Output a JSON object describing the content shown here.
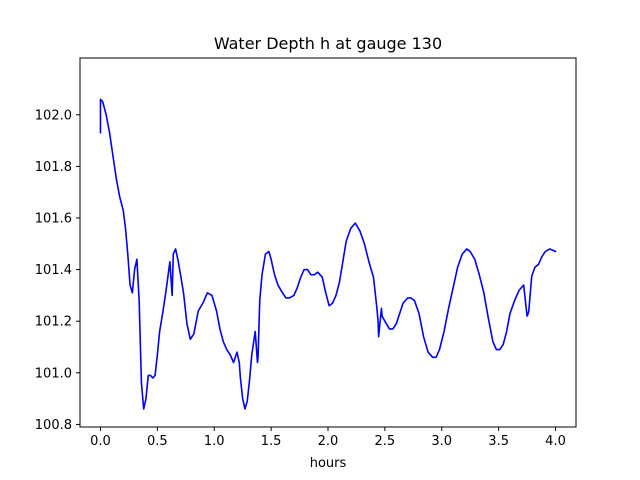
{
  "chart_data": {
    "type": "line",
    "title": "Water Depth h at gauge 130",
    "xlabel": "hours",
    "ylabel": "",
    "xlim": [
      -0.18,
      4.18
    ],
    "ylim": [
      100.79,
      102.22
    ],
    "xticks": [
      0.0,
      0.5,
      1.0,
      1.5,
      2.0,
      2.5,
      3.0,
      3.5,
      4.0
    ],
    "xtick_labels": [
      "0.0",
      "0.5",
      "1.0",
      "1.5",
      "2.0",
      "2.5",
      "3.0",
      "3.5",
      "4.0"
    ],
    "yticks": [
      100.8,
      101.0,
      101.2,
      101.4,
      101.6,
      101.8,
      102.0
    ],
    "ytick_labels": [
      "100.8",
      "101.0",
      "101.2",
      "101.4",
      "101.6",
      "101.8",
      "102.0"
    ],
    "grid": false,
    "series": [
      {
        "color": "#0000ff",
        "x": [
          0.0,
          0.0,
          0.02,
          0.05,
          0.08,
          0.11,
          0.14,
          0.17,
          0.2,
          0.22,
          0.24,
          0.26,
          0.28,
          0.3,
          0.32,
          0.34,
          0.36,
          0.38,
          0.4,
          0.42,
          0.44,
          0.46,
          0.48,
          0.5,
          0.52,
          0.55,
          0.58,
          0.61,
          0.63,
          0.635,
          0.64,
          0.66,
          0.68,
          0.7,
          0.73,
          0.76,
          0.79,
          0.82,
          0.86,
          0.9,
          0.94,
          0.98,
          1.02,
          1.05,
          1.08,
          1.11,
          1.14,
          1.17,
          1.2,
          1.22,
          1.23,
          1.25,
          1.27,
          1.29,
          1.31,
          1.33,
          1.36,
          1.38,
          1.385,
          1.4,
          1.42,
          1.45,
          1.48,
          1.5,
          1.53,
          1.56,
          1.6,
          1.63,
          1.66,
          1.7,
          1.73,
          1.76,
          1.79,
          1.82,
          1.85,
          1.88,
          1.91,
          1.95,
          1.98,
          2.01,
          2.04,
          2.07,
          2.1,
          2.13,
          2.16,
          2.2,
          2.24,
          2.28,
          2.32,
          2.36,
          2.4,
          2.43,
          2.44,
          2.445,
          2.47,
          2.475,
          2.5,
          2.54,
          2.57,
          2.6,
          2.63,
          2.66,
          2.7,
          2.73,
          2.76,
          2.8,
          2.84,
          2.88,
          2.92,
          2.95,
          2.98,
          3.02,
          3.06,
          3.1,
          3.14,
          3.18,
          3.22,
          3.25,
          3.29,
          3.33,
          3.37,
          3.41,
          3.45,
          3.48,
          3.51,
          3.54,
          3.57,
          3.6,
          3.64,
          3.68,
          3.72,
          3.75,
          3.76,
          3.765,
          3.79,
          3.795,
          3.82,
          3.85,
          3.88,
          3.91,
          3.95,
          4.0
        ],
        "y": [
          101.93,
          102.06,
          102.05,
          102.0,
          101.93,
          101.84,
          101.75,
          101.68,
          101.63,
          101.56,
          101.46,
          101.34,
          101.31,
          101.4,
          101.44,
          101.28,
          100.96,
          100.86,
          100.9,
          100.99,
          100.99,
          100.98,
          100.99,
          101.07,
          101.16,
          101.24,
          101.33,
          101.43,
          101.3,
          101.38,
          101.46,
          101.48,
          101.44,
          101.39,
          101.31,
          101.19,
          101.13,
          101.15,
          101.24,
          101.27,
          101.31,
          101.3,
          101.24,
          101.17,
          101.12,
          101.09,
          101.07,
          101.04,
          101.08,
          101.04,
          100.98,
          100.9,
          100.86,
          100.89,
          100.97,
          101.07,
          101.16,
          101.04,
          101.06,
          101.28,
          101.38,
          101.46,
          101.47,
          101.44,
          101.38,
          101.34,
          101.31,
          101.29,
          101.29,
          101.3,
          101.33,
          101.37,
          101.4,
          101.4,
          101.38,
          101.38,
          101.39,
          101.37,
          101.31,
          101.26,
          101.27,
          101.3,
          101.35,
          101.43,
          101.51,
          101.56,
          101.58,
          101.55,
          101.5,
          101.43,
          101.37,
          101.25,
          101.2,
          101.14,
          101.25,
          101.22,
          101.2,
          101.17,
          101.17,
          101.19,
          101.23,
          101.27,
          101.29,
          101.29,
          101.28,
          101.23,
          101.14,
          101.08,
          101.06,
          101.06,
          101.09,
          101.16,
          101.25,
          101.33,
          101.41,
          101.46,
          101.48,
          101.47,
          101.44,
          101.38,
          101.31,
          101.21,
          101.12,
          101.09,
          101.09,
          101.11,
          101.16,
          101.23,
          101.28,
          101.32,
          101.34,
          101.22,
          101.23,
          101.24,
          101.37,
          101.38,
          101.41,
          101.42,
          101.45,
          101.47,
          101.48,
          101.47
        ]
      }
    ]
  }
}
